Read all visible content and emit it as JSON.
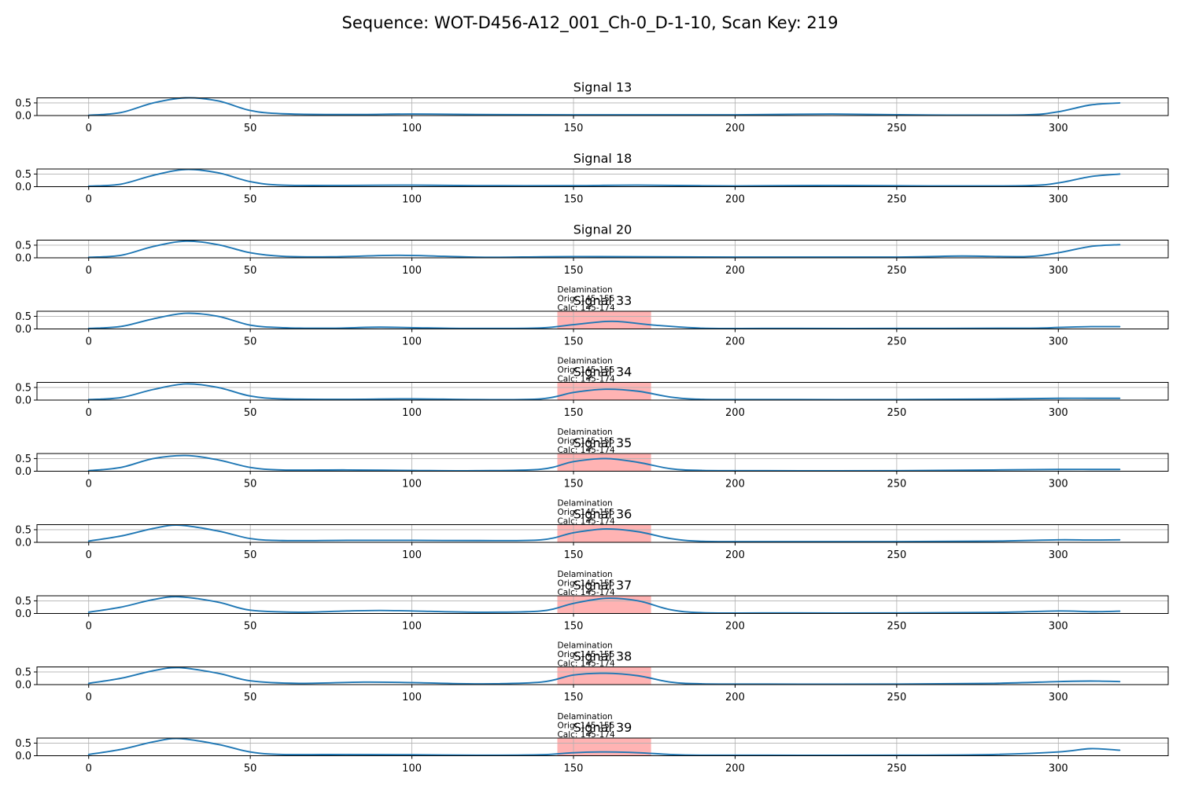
{
  "figure": {
    "suptitle": "Sequence: WOT-D456-A12_001_Ch-0_D-1-10, Scan Key: 219"
  },
  "colors": {
    "line": "#1f77b4",
    "region_fill": "#ffb3b3",
    "region_edge": "#ff9999",
    "grid": "#b0b0b0",
    "axes": "#000000"
  },
  "chart_data": [
    {
      "type": "line",
      "title": "Signal 13",
      "xlim": [
        -16,
        334
      ],
      "ylim": [
        0,
        0.7
      ],
      "xticks": [
        0,
        50,
        100,
        150,
        200,
        250,
        300
      ],
      "yticks": [
        0.0,
        0.5
      ],
      "grid": true,
      "x": [
        0,
        10,
        20,
        30,
        40,
        50,
        60,
        80,
        100,
        120,
        150,
        200,
        230,
        260,
        290,
        300,
        310,
        319
      ],
      "values": [
        0.01,
        0.12,
        0.5,
        0.7,
        0.58,
        0.2,
        0.07,
        0.04,
        0.06,
        0.04,
        0.03,
        0.03,
        0.06,
        0.02,
        0.03,
        0.15,
        0.42,
        0.5
      ],
      "annotations": []
    },
    {
      "type": "line",
      "title": "Signal 18",
      "xlim": [
        -16,
        334
      ],
      "ylim": [
        0,
        0.7
      ],
      "xticks": [
        0,
        50,
        100,
        150,
        200,
        250,
        300
      ],
      "yticks": [
        0.0,
        0.5
      ],
      "grid": true,
      "x": [
        0,
        10,
        20,
        30,
        40,
        50,
        60,
        80,
        100,
        120,
        150,
        170,
        200,
        230,
        260,
        290,
        300,
        310,
        319
      ],
      "values": [
        0.02,
        0.1,
        0.45,
        0.68,
        0.55,
        0.2,
        0.06,
        0.05,
        0.06,
        0.04,
        0.04,
        0.06,
        0.03,
        0.05,
        0.03,
        0.04,
        0.15,
        0.4,
        0.5
      ],
      "annotations": []
    },
    {
      "type": "line",
      "title": "Signal 20",
      "xlim": [
        -16,
        334
      ],
      "ylim": [
        0,
        0.7
      ],
      "xticks": [
        0,
        50,
        100,
        150,
        200,
        250,
        300
      ],
      "yticks": [
        0.0,
        0.5
      ],
      "grid": true,
      "x": [
        0,
        10,
        20,
        30,
        40,
        50,
        60,
        75,
        95,
        110,
        125,
        150,
        200,
        250,
        270,
        290,
        300,
        310,
        319
      ],
      "values": [
        0.02,
        0.1,
        0.45,
        0.66,
        0.52,
        0.2,
        0.06,
        0.04,
        0.1,
        0.06,
        0.02,
        0.05,
        0.03,
        0.03,
        0.07,
        0.05,
        0.2,
        0.45,
        0.52
      ],
      "annotations": []
    },
    {
      "type": "line",
      "title": "Signal 33",
      "xlim": [
        -16,
        334
      ],
      "ylim": [
        0,
        0.7
      ],
      "xticks": [
        0,
        50,
        100,
        150,
        200,
        250,
        300
      ],
      "yticks": [
        0.0,
        0.5
      ],
      "grid": true,
      "x": [
        0,
        10,
        20,
        30,
        40,
        50,
        60,
        75,
        90,
        105,
        120,
        140,
        150,
        162,
        175,
        190,
        210,
        250,
        290,
        300,
        310,
        319
      ],
      "values": [
        0.02,
        0.1,
        0.4,
        0.62,
        0.5,
        0.15,
        0.05,
        0.03,
        0.07,
        0.04,
        0.02,
        0.04,
        0.17,
        0.3,
        0.15,
        0.03,
        0.02,
        0.02,
        0.03,
        0.06,
        0.09,
        0.09
      ],
      "annotations": [
        {
          "lines": [
            "Delamination",
            "Orig: 145-155",
            "Calc: 145-174"
          ],
          "x0": 145,
          "x1": 174
        }
      ]
    },
    {
      "type": "line",
      "title": "Signal 34",
      "xlim": [
        -16,
        334
      ],
      "ylim": [
        0,
        0.7
      ],
      "xticks": [
        0,
        50,
        100,
        150,
        200,
        250,
        300
      ],
      "yticks": [
        0.0,
        0.5
      ],
      "grid": true,
      "x": [
        0,
        10,
        20,
        30,
        40,
        50,
        60,
        80,
        100,
        120,
        140,
        150,
        160,
        170,
        180,
        190,
        210,
        250,
        280,
        300,
        310,
        319
      ],
      "values": [
        0.02,
        0.1,
        0.42,
        0.64,
        0.5,
        0.16,
        0.05,
        0.03,
        0.05,
        0.02,
        0.05,
        0.3,
        0.43,
        0.35,
        0.12,
        0.03,
        0.02,
        0.02,
        0.04,
        0.07,
        0.07,
        0.07
      ],
      "annotations": [
        {
          "lines": [
            "Delamination",
            "Orig: 145-155",
            "Calc: 145-174"
          ],
          "x0": 145,
          "x1": 174
        }
      ]
    },
    {
      "type": "line",
      "title": "Signal 35",
      "xlim": [
        -16,
        334
      ],
      "ylim": [
        0,
        0.7
      ],
      "xticks": [
        0,
        50,
        100,
        150,
        200,
        250,
        300
      ],
      "yticks": [
        0.0,
        0.5
      ],
      "grid": true,
      "x": [
        0,
        10,
        20,
        30,
        40,
        50,
        60,
        80,
        100,
        120,
        140,
        150,
        160,
        170,
        180,
        190,
        210,
        250,
        280,
        300,
        310,
        319
      ],
      "values": [
        0.02,
        0.15,
        0.5,
        0.62,
        0.45,
        0.15,
        0.05,
        0.05,
        0.03,
        0.02,
        0.08,
        0.38,
        0.5,
        0.35,
        0.1,
        0.03,
        0.02,
        0.02,
        0.05,
        0.07,
        0.07,
        0.07
      ],
      "annotations": [
        {
          "lines": [
            "Delamination",
            "Orig: 145-155",
            "Calc: 145-174"
          ],
          "x0": 145,
          "x1": 174
        }
      ]
    },
    {
      "type": "line",
      "title": "Signal 36",
      "xlim": [
        -16,
        334
      ],
      "ylim": [
        0,
        0.7
      ],
      "xticks": [
        0,
        50,
        100,
        150,
        200,
        250,
        300
      ],
      "yticks": [
        0.0,
        0.5
      ],
      "grid": true,
      "x": [
        0,
        10,
        20,
        28,
        40,
        50,
        60,
        80,
        100,
        120,
        140,
        150,
        160,
        170,
        180,
        190,
        210,
        250,
        280,
        300,
        310,
        319
      ],
      "values": [
        0.05,
        0.25,
        0.55,
        0.68,
        0.45,
        0.15,
        0.07,
        0.08,
        0.08,
        0.07,
        0.1,
        0.38,
        0.53,
        0.42,
        0.15,
        0.04,
        0.03,
        0.03,
        0.05,
        0.1,
        0.09,
        0.1
      ],
      "annotations": [
        {
          "lines": [
            "Delamination",
            "Orig: 145-155",
            "Calc: 145-174"
          ],
          "x0": 145,
          "x1": 174
        }
      ]
    },
    {
      "type": "line",
      "title": "Signal 37",
      "xlim": [
        -16,
        334
      ],
      "ylim": [
        0,
        0.7
      ],
      "xticks": [
        0,
        50,
        100,
        150,
        200,
        250,
        300
      ],
      "yticks": [
        0.0,
        0.5
      ],
      "grid": true,
      "x": [
        0,
        10,
        20,
        28,
        40,
        50,
        65,
        80,
        90,
        100,
        120,
        140,
        150,
        160,
        170,
        180,
        190,
        210,
        250,
        280,
        300,
        310,
        319
      ],
      "values": [
        0.05,
        0.25,
        0.55,
        0.66,
        0.45,
        0.13,
        0.05,
        0.1,
        0.12,
        0.1,
        0.05,
        0.1,
        0.4,
        0.6,
        0.5,
        0.15,
        0.03,
        0.02,
        0.02,
        0.04,
        0.1,
        0.07,
        0.09
      ],
      "annotations": [
        {
          "lines": [
            "Delamination",
            "Orig: 145-155",
            "Calc: 145-174"
          ],
          "x0": 145,
          "x1": 174
        }
      ]
    },
    {
      "type": "line",
      "title": "Signal 38",
      "xlim": [
        -16,
        334
      ],
      "ylim": [
        0,
        0.7
      ],
      "xticks": [
        0,
        50,
        100,
        150,
        200,
        250,
        300
      ],
      "yticks": [
        0.0,
        0.5
      ],
      "grid": true,
      "x": [
        0,
        10,
        20,
        28,
        40,
        50,
        65,
        85,
        100,
        120,
        140,
        150,
        160,
        170,
        180,
        190,
        210,
        250,
        280,
        300,
        310,
        319
      ],
      "values": [
        0.05,
        0.25,
        0.55,
        0.67,
        0.45,
        0.15,
        0.05,
        0.1,
        0.08,
        0.03,
        0.1,
        0.38,
        0.45,
        0.35,
        0.1,
        0.03,
        0.02,
        0.02,
        0.05,
        0.12,
        0.14,
        0.12
      ],
      "annotations": [
        {
          "lines": [
            "Delamination",
            "Orig: 145-155",
            "Calc: 145-174"
          ],
          "x0": 145,
          "x1": 174
        }
      ]
    },
    {
      "type": "line",
      "title": "Signal 39",
      "xlim": [
        -16,
        334
      ],
      "ylim": [
        0,
        0.7
      ],
      "xticks": [
        0,
        50,
        100,
        150,
        200,
        250,
        300
      ],
      "yticks": [
        0.0,
        0.5
      ],
      "grid": true,
      "x": [
        0,
        10,
        20,
        28,
        40,
        50,
        60,
        80,
        100,
        120,
        140,
        150,
        160,
        170,
        180,
        190,
        210,
        250,
        280,
        300,
        310,
        319
      ],
      "values": [
        0.05,
        0.25,
        0.55,
        0.68,
        0.45,
        0.15,
        0.05,
        0.05,
        0.04,
        0.02,
        0.04,
        0.12,
        0.15,
        0.12,
        0.05,
        0.02,
        0.02,
        0.02,
        0.05,
        0.15,
        0.28,
        0.22
      ],
      "annotations": [
        {
          "lines": [
            "Delamination",
            "Orig: 145-155",
            "Calc: 145-174"
          ],
          "x0": 145,
          "x1": 174
        }
      ]
    }
  ]
}
